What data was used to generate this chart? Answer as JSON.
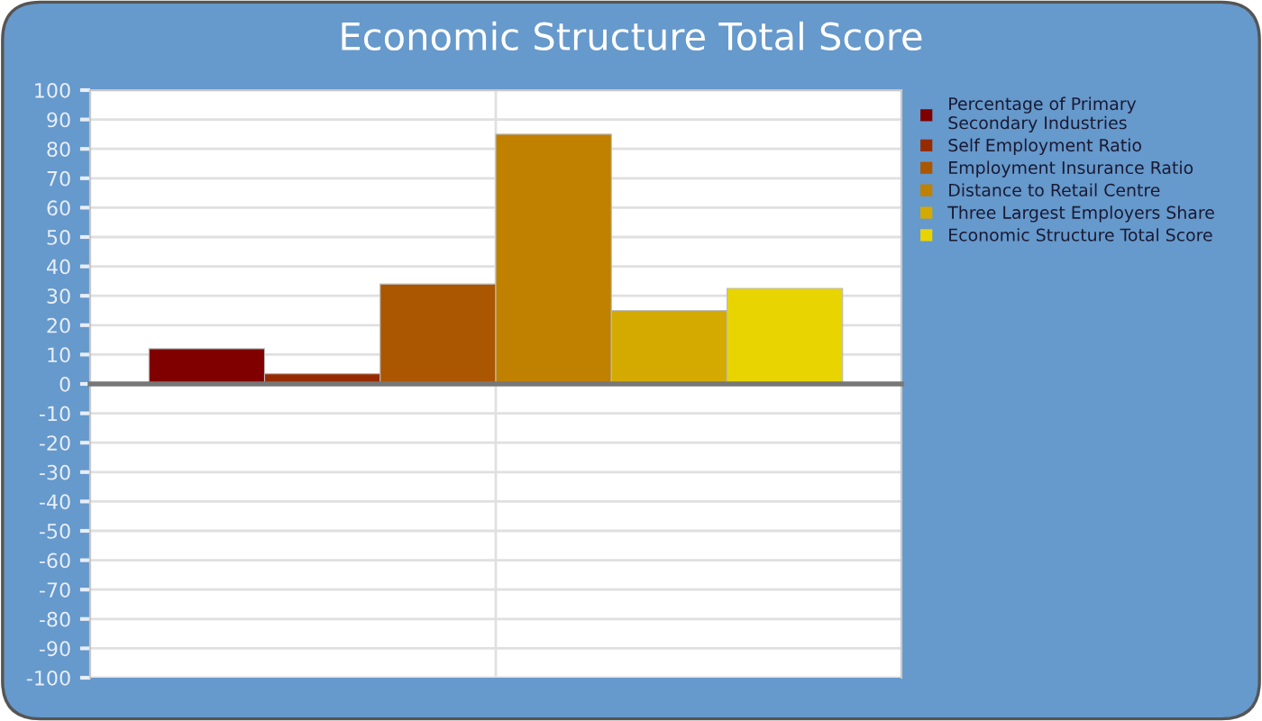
{
  "chart_data": {
    "type": "bar",
    "title": "Economic Structure Total Score",
    "categories": [
      null
    ],
    "series": [
      {
        "name": "Percentage of Primary\nSecondary Industries",
        "color": "#800000",
        "values": [
          12
        ]
      },
      {
        "name": "Self Employment Ratio",
        "color": "#962b00",
        "values": [
          3.5
        ]
      },
      {
        "name": "Employment Insurance Ratio",
        "color": "#ab5600",
        "values": [
          34
        ]
      },
      {
        "name": "Distance to Retail Centre",
        "color": "#c08000",
        "values": [
          85
        ]
      },
      {
        "name": "Three Largest Employers Share",
        "color": "#d4aa00",
        "values": [
          25
        ]
      },
      {
        "name": "Economic Structure Total Score",
        "color": "#e8d400",
        "values": [
          32.5
        ]
      }
    ],
    "ylim": [
      -100,
      100
    ],
    "yticks": [
      -100,
      -90,
      -80,
      -70,
      -60,
      -50,
      -40,
      -30,
      -20,
      -10,
      0,
      10,
      20,
      30,
      40,
      50,
      60,
      70,
      80,
      90,
      100
    ],
    "grid": true,
    "legend": "right"
  }
}
